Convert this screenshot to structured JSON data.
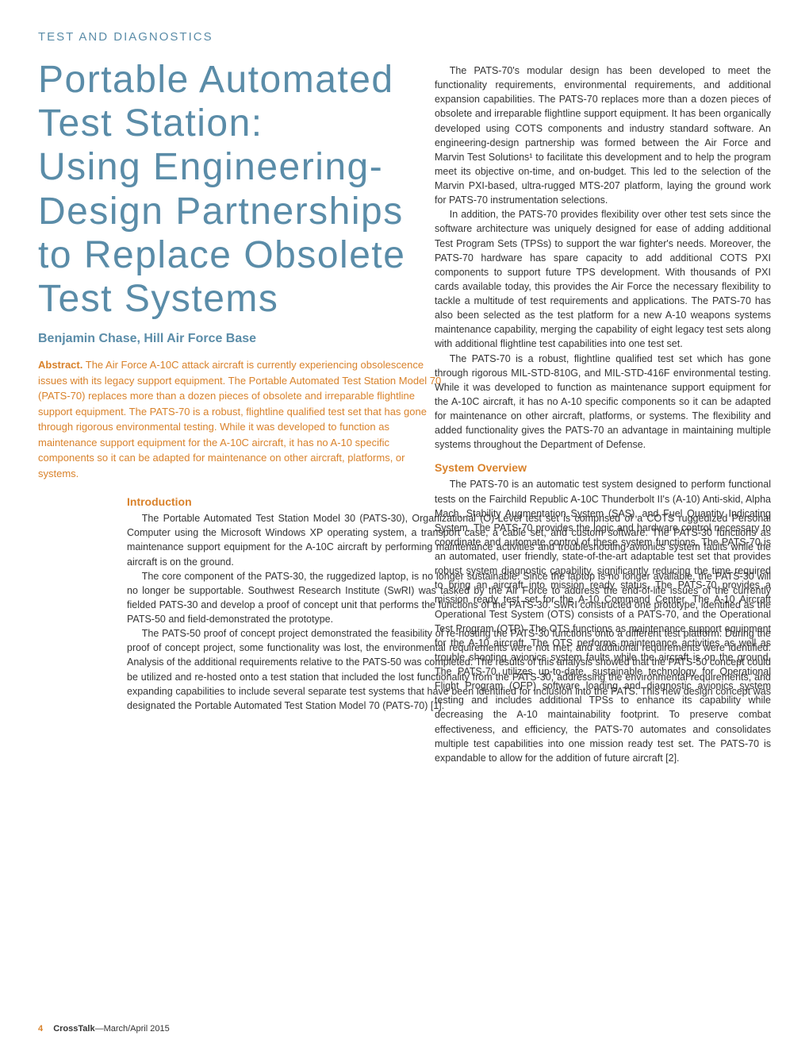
{
  "category": "TEST AND DIAGNOSTICS",
  "title": "Portable Automated Test Station:\nUsing Engineering-Design Partnerships to Replace Obsolete Test Systems",
  "author": "Benjamin Chase, Hill Air Force Base",
  "abstract_label": "Abstract.",
  "abstract_text": "The Air Force A-10C attack aircraft is currently experiencing obsolescence issues with its legacy support equipment. The Portable Automated Test Station Model 70 (PATS-70) replaces more than a dozen pieces of obsolete and irreparable flightline support equipment. The PATS-70 is a robust, flightline qualified test set that has gone through rigorous environmental testing. While it was developed to function as maintenance support equipment for the A-10C aircraft, it has no A-10 specific components so it can be adapted for maintenance on other aircraft, platforms, or systems.",
  "sections": {
    "intro_heading": "Introduction",
    "intro_p1": "The Portable Automated Test Station Model 30 (PATS-30), Organizational (O)-Level test set is comprised of a COTS ruggedized Personal Computer using the Microsoft Windows XP operating system, a transport case, a cable set, and custom software. The PATS-30 functions as maintenance support equipment for the A-10C aircraft by performing maintenance activities and troubleshooting avionics system faults while the aircraft is on the ground.",
    "intro_p2": "The core component of the PATS-30, the ruggedized laptop, is no longer sustainable. Since the laptop is no longer available, the PATS-30 will no longer be supportable. Southwest Research Institute (SwRI) was tasked by the Air Force to address the end-of-life issues of the currently fielded PATS-30 and develop a proof of concept unit that performs the functions of the PATS-30. SwRI constructed one prototype, identified as the PATS-50 and field-demonstrated the prototype.",
    "intro_p3": "The PATS-50 proof of concept project demonstrated the feasibility of re-hosting the PATS-30 functions onto a different test platform. During the proof of concept project, some functionality was lost, the environmental requirements were not met, and additional requirements were identified. Analysis of the additional requirements relative to the PATS-50 was completed. The results of this analysis showed that the PATS-50 concept could be utilized and re-hosted onto a test station that included the lost functionality from the PATS-30, addressing the environmental requirements, and expanding capabilities to include several separate test systems that have been identified for inclusion into the PATS. This new design concept was designated the Portable Automated Test Station Model 70 (PATS-70) [1].",
    "right_p1": "The PATS-70's modular design has been developed to meet the functionality requirements, environmental requirements, and additional expansion capabilities. The PATS-70 replaces more than a dozen pieces of obsolete and irreparable flightline support equipment. It has been organically developed using COTS components and industry standard software. An engineering-design partnership was formed between the Air Force and Marvin Test Solutions¹ to facilitate this development and to help the program meet its objective on-time, and on-budget. This led to the selection of the Marvin PXI-based, ultra-rugged MTS-207 platform, laying the ground work for PATS-70 instrumentation selections.",
    "right_p2": "In addition, the PATS-70 provides flexibility over other test sets since the software architecture was uniquely designed for ease of adding additional Test Program Sets (TPSs) to support the war fighter's needs. Moreover, the PATS-70 hardware has spare capacity to add additional COTS PXI components to support future TPS development. With thousands of PXI cards available today, this provides the Air Force the necessary flexibility to tackle a multitude of test requirements and applications. The PATS-70 has also been selected as the test platform for a new A-10 weapons systems maintenance capability, merging the capability of eight legacy test sets along with additional flightline test capabilities into one test set.",
    "right_p3": "The PATS-70 is a robust, flightline qualified test set which has gone through rigorous MIL-STD-810G, and MIL-STD-416F environmental testing. While it was developed to function as maintenance support equipment for the A-10C aircraft, it has no A-10 specific components so it can be adapted for maintenance on other aircraft, platforms, or systems. The flexibility and added functionality gives the PATS-70 an advantage in maintaining multiple systems throughout the Department of Defense.",
    "overview_heading": "System Overview",
    "overview_p1": "The PATS-70 is an automatic test system designed to perform functional tests on the Fairchild Republic A-10C Thunderbolt II's (A-10) Anti-skid, Alpha Mach, Stability Augmentation System (SAS), and Fuel Quantity Indicating System. The PATS-70 provides the logic and hardware control necessary to coordinate and automate control of these system functions. The PATS-70 is an automated, user friendly, state-of-the-art adaptable test set that provides robust system diagnostic capability, significantly reducing the time required to bring an aircraft into mission ready status. The PATS-70 provides a mission ready test set for the A-10 Command Center. The A-10 Aircraft Operational Test System (OTS) consists of a PATS-70, and the Operational Test Program (OTP). The OTS functions as maintenance support equipment for the A-10 aircraft. The OTS performs maintenance activities as well as trouble shooting avionics system faults while the aircraft is on the ground. The PATS-70 utilizes up-to-date, sustainable technology for Operational Flight Program (OFP) software loading and diagnostic avionics system testing and includes additional TPSs to enhance its capability while decreasing the A-10 maintainability footprint. To preserve combat effectiveness, and efficiency, the PATS-70 automates and consolidates multiple test capabilities into one mission ready test set. The PATS-70 is expandable to allow for the addition of future aircraft [2]."
  },
  "footer": {
    "page": "4",
    "publication": "CrossTalk",
    "issue": "—March/April 2015"
  },
  "colors": {
    "accent_blue": "#5a8ca8",
    "accent_orange": "#d9822b",
    "body_text": "#333333",
    "background": "#ffffff"
  }
}
